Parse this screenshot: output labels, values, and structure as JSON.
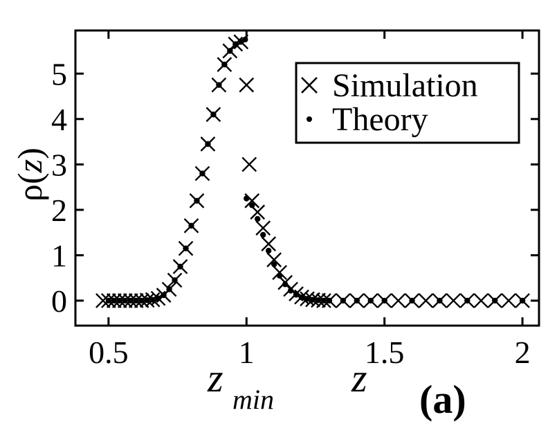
{
  "chart_data": {
    "type": "scatter",
    "xlim": [
      0.38,
      2.06
    ],
    "ylim": [
      -0.55,
      5.95
    ],
    "xticks": [
      {
        "value": 0.5,
        "label": "0.5"
      },
      {
        "value": 1,
        "label": "1"
      },
      {
        "value": 1.5,
        "label": "1.5"
      },
      {
        "value": 2,
        "label": "2"
      }
    ],
    "yticks": [
      {
        "value": 0,
        "label": "0"
      },
      {
        "value": 1,
        "label": "1"
      },
      {
        "value": 2,
        "label": "2"
      },
      {
        "value": 3,
        "label": "3"
      },
      {
        "value": 4,
        "label": "4"
      },
      {
        "value": 5,
        "label": "5"
      }
    ],
    "xlabel": {
      "main": "z",
      "min_main": "z",
      "min_sub": "min"
    },
    "ylabel": {
      "symbol": "ρ",
      "open": "(",
      "var": "z",
      "close": ")"
    },
    "panel_label": "(a)",
    "legend_position": "top-right",
    "series": [
      {
        "name": "Simulation",
        "marker": "x",
        "x": [
          0.48,
          0.5,
          0.52,
          0.54,
          0.56,
          0.58,
          0.6,
          0.62,
          0.64,
          0.66,
          0.68,
          0.7,
          0.72,
          0.74,
          0.76,
          0.78,
          0.8,
          0.82,
          0.84,
          0.86,
          0.88,
          0.9,
          0.92,
          0.94,
          0.96,
          0.98,
          1.0,
          1.01,
          1.02,
          1.04,
          1.06,
          1.08,
          1.1,
          1.12,
          1.14,
          1.16,
          1.18,
          1.2,
          1.22,
          1.24,
          1.26,
          1.28,
          1.3,
          1.35,
          1.4,
          1.45,
          1.5,
          1.55,
          1.6,
          1.65,
          1.7,
          1.75,
          1.8,
          1.85,
          1.9,
          1.95,
          2.0
        ],
        "y": [
          0,
          0,
          0,
          0,
          0,
          0,
          0,
          0,
          0.01,
          0.02,
          0.05,
          0.12,
          0.25,
          0.45,
          0.75,
          1.15,
          1.65,
          2.2,
          2.8,
          3.45,
          4.1,
          4.75,
          5.2,
          5.5,
          5.65,
          5.7,
          4.75,
          3.0,
          2.2,
          1.95,
          1.6,
          1.25,
          0.9,
          0.62,
          0.4,
          0.25,
          0.15,
          0.08,
          0.04,
          0.02,
          0.01,
          0,
          0,
          0,
          0,
          0,
          0,
          0,
          0,
          0,
          0,
          0,
          0,
          0,
          0,
          0,
          0
        ]
      },
      {
        "name": "Theory",
        "marker": "dot",
        "x": [
          0.5,
          0.52,
          0.54,
          0.56,
          0.58,
          0.6,
          0.62,
          0.64,
          0.66,
          0.68,
          0.7,
          0.72,
          0.74,
          0.76,
          0.78,
          0.8,
          0.82,
          0.84,
          0.86,
          0.88,
          0.9,
          0.92,
          0.94,
          0.96,
          0.98,
          0.995,
          1.0,
          1.02,
          1.04,
          1.06,
          1.08,
          1.1,
          1.12,
          1.14,
          1.16,
          1.18,
          1.2,
          1.22,
          1.24,
          1.26,
          1.28,
          1.3,
          1.35,
          1.4,
          1.45,
          1.5,
          1.6,
          1.7,
          1.8,
          1.9,
          2.0
        ],
        "y": [
          0,
          0,
          0,
          0,
          0,
          0,
          0,
          0.01,
          0.02,
          0.05,
          0.12,
          0.25,
          0.45,
          0.75,
          1.15,
          1.65,
          2.2,
          2.8,
          3.45,
          4.1,
          4.75,
          5.2,
          5.5,
          5.65,
          5.7,
          5.75,
          2.25,
          2.1,
          1.8,
          1.45,
          1.1,
          0.8,
          0.55,
          0.36,
          0.22,
          0.13,
          0.07,
          0.04,
          0.02,
          0.01,
          0,
          0,
          0,
          0,
          0,
          0,
          0,
          0,
          0,
          0,
          0
        ]
      }
    ]
  }
}
